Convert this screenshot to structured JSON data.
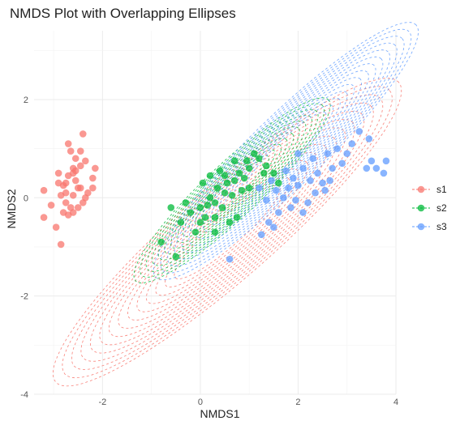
{
  "chart_data": {
    "type": "scatter",
    "title": "NMDS Plot with Overlapping Ellipses",
    "xlabel": "NMDS1",
    "ylabel": "NMDS2",
    "xlim": [
      -3.4,
      4.0
    ],
    "ylim": [
      -4.0,
      3.4
    ],
    "xticks": [
      -2,
      0,
      2,
      4
    ],
    "yticks": [
      -4,
      -2,
      0,
      2
    ],
    "grid": true,
    "legend": "right",
    "ellipse_style": "dashed, concentric rings",
    "series": [
      {
        "name": "s1",
        "color": "#F8766D",
        "points": [
          [
            -3.2,
            0.15
          ],
          [
            -3.2,
            -0.4
          ],
          [
            -3.05,
            -0.15
          ],
          [
            -2.95,
            -0.6
          ],
          [
            -2.85,
            -0.95
          ],
          [
            -2.9,
            0.5
          ],
          [
            -2.8,
            0.25
          ],
          [
            -2.75,
            0.1
          ],
          [
            -2.7,
            0.45
          ],
          [
            -2.6,
            0.6
          ],
          [
            -2.55,
            0.35
          ],
          [
            -2.5,
            0.2
          ],
          [
            -2.75,
            -0.1
          ],
          [
            -2.65,
            -0.2
          ],
          [
            -2.6,
            0.05
          ],
          [
            -2.85,
            0.05
          ],
          [
            -2.55,
            0.8
          ],
          [
            -2.65,
            0.95
          ],
          [
            -2.7,
            1.1
          ],
          [
            -2.4,
            1.3
          ],
          [
            -2.45,
            0.65
          ],
          [
            -2.35,
            0.75
          ],
          [
            -2.2,
            0.4
          ],
          [
            -2.15,
            0.6
          ],
          [
            -2.3,
            0.1
          ],
          [
            -2.4,
            -0.1
          ],
          [
            -2.5,
            -0.2
          ],
          [
            -2.6,
            -0.3
          ],
          [
            -2.7,
            -0.35
          ],
          [
            -2.8,
            -0.3
          ],
          [
            -2.75,
            0.3
          ],
          [
            -2.45,
            0.2
          ],
          [
            -2.35,
            0.0
          ],
          [
            -2.6,
            0.5
          ],
          [
            -2.9,
            0.3
          ],
          [
            -2.2,
            0.2
          ],
          [
            -2.45,
            0.95
          ],
          [
            -2.55,
            0.55
          ]
        ]
      },
      {
        "name": "s2",
        "color": "#00BA38",
        "points": [
          [
            -0.8,
            -0.9
          ],
          [
            -0.5,
            -1.2
          ],
          [
            -0.4,
            -0.5
          ],
          [
            -0.2,
            -0.3
          ],
          [
            0.0,
            -0.2
          ],
          [
            0.1,
            -0.4
          ],
          [
            0.2,
            0.0
          ],
          [
            0.3,
            -0.1
          ],
          [
            0.35,
            0.2
          ],
          [
            0.5,
            0.1
          ],
          [
            0.55,
            0.3
          ],
          [
            0.7,
            0.35
          ],
          [
            0.8,
            0.5
          ],
          [
            0.9,
            0.4
          ],
          [
            1.0,
            0.6
          ],
          [
            1.2,
            0.8
          ],
          [
            1.3,
            0.5
          ],
          [
            1.5,
            0.5
          ],
          [
            1.6,
            0.3
          ],
          [
            1.1,
            0.9
          ],
          [
            0.45,
            -0.2
          ],
          [
            0.6,
            -0.5
          ],
          [
            0.3,
            -0.7
          ],
          [
            -0.1,
            -0.7
          ],
          [
            0.0,
            -0.5
          ],
          [
            0.75,
            -0.4
          ],
          [
            0.2,
            0.45
          ],
          [
            0.4,
            0.55
          ],
          [
            -0.3,
            -0.1
          ],
          [
            0.85,
            0.15
          ],
          [
            1.35,
            0.65
          ],
          [
            0.15,
            -0.15
          ],
          [
            0.65,
            0.05
          ],
          [
            0.95,
            0.75
          ],
          [
            0.05,
            0.3
          ],
          [
            0.5,
            0.45
          ],
          [
            0.3,
            -0.4
          ],
          [
            -0.6,
            -0.2
          ],
          [
            1.0,
            0.2
          ],
          [
            0.7,
            0.75
          ]
        ]
      },
      {
        "name": "s3",
        "color": "#619CFF",
        "points": [
          [
            0.6,
            -1.25
          ],
          [
            1.25,
            -0.75
          ],
          [
            1.4,
            -0.5
          ],
          [
            1.6,
            -0.3
          ],
          [
            1.7,
            0.0
          ],
          [
            1.8,
            0.2
          ],
          [
            1.9,
            0.4
          ],
          [
            2.0,
            0.25
          ],
          [
            2.1,
            0.6
          ],
          [
            2.2,
            -0.1
          ],
          [
            2.3,
            0.8
          ],
          [
            2.4,
            0.5
          ],
          [
            2.5,
            0.3
          ],
          [
            2.6,
            0.9
          ],
          [
            2.7,
            0.6
          ],
          [
            2.8,
            1.0
          ],
          [
            2.9,
            0.7
          ],
          [
            3.0,
            0.9
          ],
          [
            3.1,
            1.1
          ],
          [
            3.25,
            1.35
          ],
          [
            3.4,
            0.6
          ],
          [
            3.5,
            0.75
          ],
          [
            3.6,
            0.6
          ],
          [
            3.75,
            0.5
          ],
          [
            3.8,
            0.75
          ],
          [
            3.45,
            1.2
          ],
          [
            2.35,
            0.1
          ],
          [
            2.1,
            -0.3
          ],
          [
            1.85,
            -0.2
          ],
          [
            1.55,
            0.15
          ],
          [
            1.35,
            -0.05
          ],
          [
            1.75,
            0.55
          ],
          [
            2.55,
            0.15
          ],
          [
            2.0,
            0.9
          ],
          [
            1.5,
            -0.6
          ],
          [
            2.25,
            0.35
          ],
          [
            1.95,
            -0.05
          ],
          [
            1.45,
            0.35
          ],
          [
            1.2,
            0.2
          ],
          [
            2.65,
            0.35
          ]
        ]
      }
    ],
    "ellipses": [
      {
        "series": "s1",
        "color": "#F8766D",
        "center": [
          0.55,
          -0.7
        ],
        "semi_major": 4.65,
        "semi_minor": 0.95,
        "angle_deg": 41,
        "rings": 14
      },
      {
        "series": "s2",
        "color": "#00BA38",
        "center": [
          0.65,
          0.15
        ],
        "semi_major": 2.7,
        "semi_minor": 0.55,
        "angle_deg": 43,
        "rings": 12
      },
      {
        "series": "s3",
        "color": "#619CFF",
        "center": [
          1.75,
          0.95
        ],
        "semi_major": 3.7,
        "semi_minor": 0.72,
        "angle_deg": 44,
        "rings": 14
      }
    ]
  }
}
